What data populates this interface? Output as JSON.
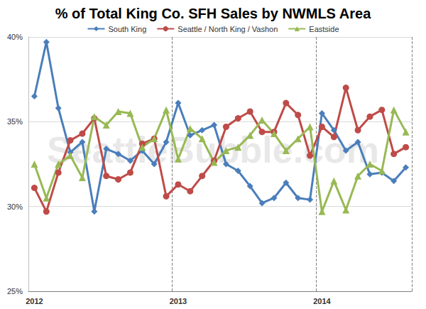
{
  "chart_data": {
    "type": "line",
    "title": "% of Total King Co. SFH Sales by NWMLS Area",
    "annotation": "SeattleBubble.com",
    "categories": [
      "2012",
      null,
      null,
      null,
      null,
      null,
      null,
      null,
      null,
      null,
      null,
      null,
      "2013",
      null,
      null,
      null,
      null,
      null,
      null,
      null,
      null,
      null,
      null,
      null,
      "2014",
      null,
      null,
      null,
      null,
      null,
      null,
      null
    ],
    "series": [
      {
        "name": "South King",
        "color": "#4a7ebb",
        "marker": "diamond",
        "values": [
          36.5,
          39.7,
          35.8,
          33.2,
          33.8,
          29.7,
          33.4,
          33.1,
          32.7,
          33.3,
          32.5,
          33.8,
          36.1,
          34.2,
          34.5,
          34.8,
          32.5,
          32.1,
          31.2,
          30.2,
          30.5,
          31.4,
          30.5,
          30.4,
          35.5,
          34.5,
          33.3,
          33.8,
          31.9,
          32.0,
          31.5,
          32.3
        ]
      },
      {
        "name": "Seattle / North King / Vashon",
        "color": "#be4b48",
        "marker": "circle",
        "values": [
          31.1,
          29.7,
          32.0,
          33.9,
          34.3,
          35.2,
          31.8,
          31.6,
          32.0,
          33.7,
          34.0,
          30.6,
          31.3,
          30.9,
          31.8,
          32.7,
          34.7,
          35.2,
          35.6,
          34.4,
          34.4,
          36.1,
          35.4,
          33.0,
          34.7,
          34.1,
          37.0,
          34.5,
          35.3,
          35.7,
          33.1,
          33.5
        ]
      },
      {
        "name": "Eastside",
        "color": "#98b954",
        "marker": "triangle",
        "values": [
          32.5,
          30.5,
          32.5,
          33.0,
          31.7,
          35.3,
          34.8,
          35.6,
          35.5,
          33.5,
          34.0,
          35.7,
          32.8,
          34.6,
          34.0,
          32.6,
          33.3,
          33.5,
          34.2,
          35.1,
          34.3,
          33.3,
          34.0,
          34.7,
          29.7,
          31.5,
          29.8,
          31.8,
          32.5,
          32.1,
          35.7,
          34.4
        ]
      }
    ],
    "ylim": [
      25,
      40
    ],
    "yticks": [
      {
        "value": 25,
        "label": "25%"
      },
      {
        "value": 30,
        "label": "30%"
      },
      {
        "value": 35,
        "label": "35%"
      },
      {
        "value": 40,
        "label": "40%"
      }
    ],
    "grid": true,
    "legend": "top"
  }
}
